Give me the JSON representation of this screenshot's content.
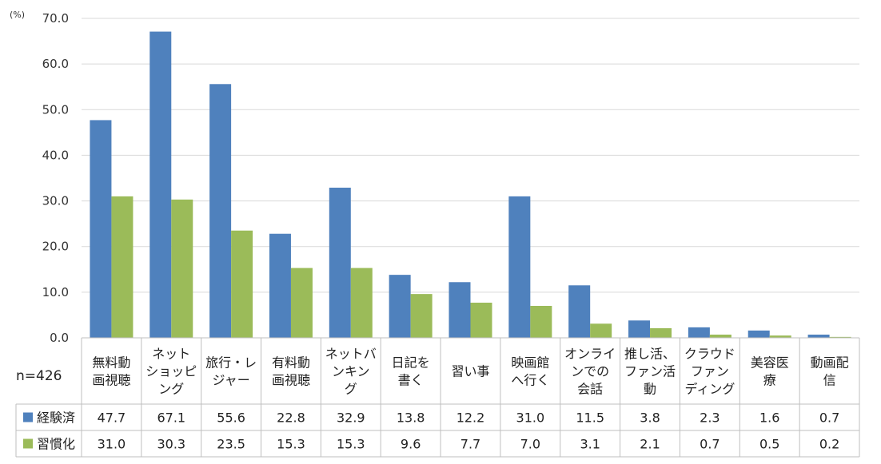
{
  "chart_data": {
    "type": "bar",
    "unit": "(%)",
    "sample_size": "n=426",
    "categories": [
      [
        "無料動",
        "画視聴"
      ],
      [
        "ネット",
        "ショッピ",
        "ング"
      ],
      [
        "旅行・レ",
        "ジャー"
      ],
      [
        "有料動",
        "画視聴"
      ],
      [
        "ネットバ",
        "ンキン",
        "グ"
      ],
      [
        "日記を",
        "書く"
      ],
      [
        "習い事"
      ],
      [
        "映画館",
        "へ行く"
      ],
      [
        "オンライ",
        "ンでの",
        "会話"
      ],
      [
        "推し活、",
        "ファン活",
        "動"
      ],
      [
        "クラウド",
        "ファン",
        "ディング"
      ],
      [
        "美容医",
        "療"
      ],
      [
        "動画配",
        "信"
      ]
    ],
    "series": [
      {
        "name": "経験済",
        "color": "#4f81bd",
        "values": [
          47.7,
          67.1,
          55.6,
          22.8,
          32.9,
          13.8,
          12.2,
          31.0,
          11.5,
          3.8,
          2.3,
          1.6,
          0.7
        ],
        "labels": [
          "47.7",
          "67.1",
          "55.6",
          "22.8",
          "32.9",
          "13.8",
          "12.2",
          "31.0",
          "11.5",
          "3.8",
          "2.3",
          "1.6",
          "0.7"
        ]
      },
      {
        "name": "習慣化",
        "color": "#9bbb59",
        "values": [
          31.0,
          30.3,
          23.5,
          15.3,
          15.3,
          9.6,
          7.7,
          7.0,
          3.1,
          2.1,
          0.7,
          0.5,
          0.2
        ],
        "labels": [
          "31.0",
          "30.3",
          "23.5",
          "15.3",
          "15.3",
          "9.6",
          "7.7",
          "7.0",
          "3.1",
          "2.1",
          "0.7",
          "0.5",
          "0.2"
        ]
      }
    ],
    "ylim": [
      0,
      70
    ],
    "yticks": [
      "0.0",
      "10.0",
      "20.0",
      "30.0",
      "40.0",
      "50.0",
      "60.0",
      "70.0"
    ],
    "grid": true,
    "legend": "data-table"
  }
}
